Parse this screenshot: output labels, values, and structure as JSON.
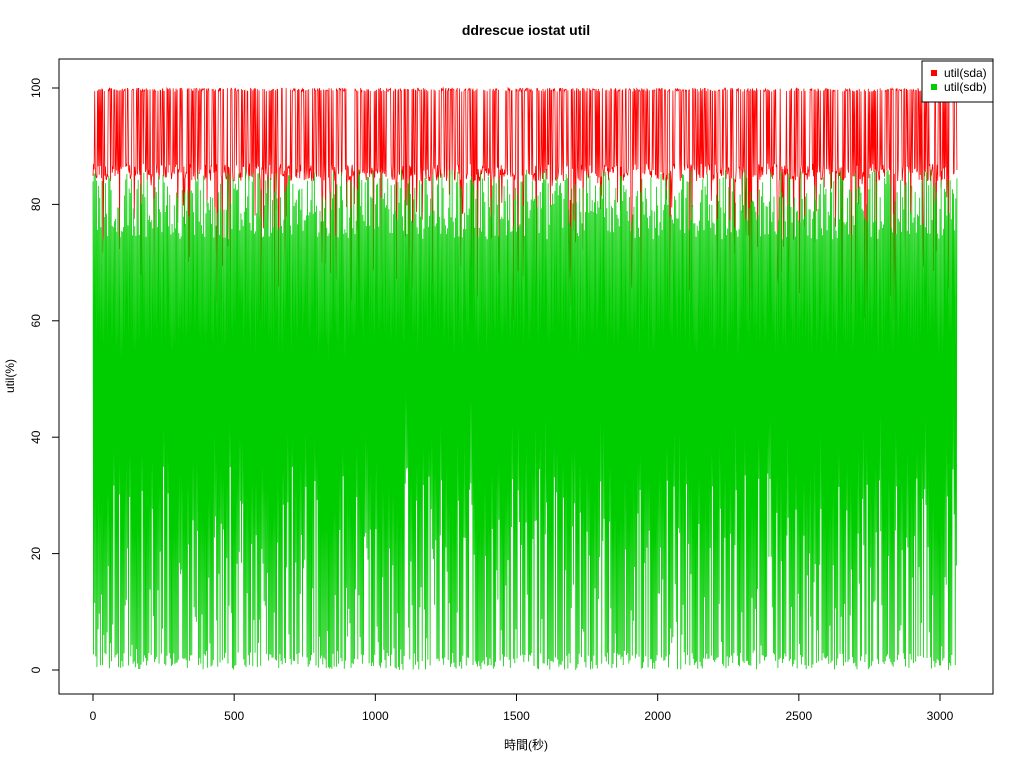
{
  "chart_data": {
    "type": "line",
    "title": "ddrescue iostat util",
    "xlabel": "時間(秒)",
    "ylabel": "util(%)",
    "xlim": [
      0,
      3060
    ],
    "ylim": [
      0,
      100
    ],
    "x_ticks": [
      0,
      500,
      1000,
      1500,
      2000,
      2500,
      3000
    ],
    "y_ticks": [
      0,
      20,
      40,
      60,
      80,
      100
    ],
    "x_tick_labels": [
      "0",
      "500",
      "1000",
      "1500",
      "2000",
      "2500",
      "3000"
    ],
    "y_tick_labels": [
      "0",
      "20",
      "40",
      "60",
      "80",
      "100"
    ],
    "grid": false,
    "legend_position": "top-right",
    "series": [
      {
        "name": "util(sda)",
        "color": "#ff0000",
        "pattern": "alternating between about 100% and 84–88%, sampled every second for ~3060 s",
        "typical_high": 100,
        "typical_low": 86
      },
      {
        "name": "util(sdb)",
        "color": "#00cd00",
        "pattern": "rapid oscillation between 0% and 80–90% for ~3060 s",
        "typical_high": 86,
        "typical_low": 0
      }
    ]
  }
}
